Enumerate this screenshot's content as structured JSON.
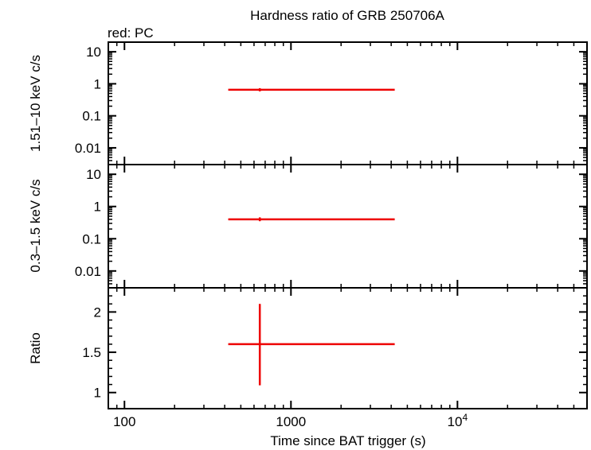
{
  "title": "Hardness ratio of GRB 250706A",
  "legend_text": "red: PC",
  "xlabel": "Time since BAT trigger (s)",
  "colors": {
    "series": "#ee0000"
  },
  "chart_data": [
    {
      "type": "scatter",
      "panel": "top",
      "ylabel": "1.51–10 keV c/s",
      "xscale": "log",
      "yscale": "log",
      "xlim": [
        80,
        60000
      ],
      "ylim": [
        0.003,
        20
      ],
      "yticks": [
        0.01,
        0.1,
        1,
        10
      ],
      "ytick_labels": [
        "0.01",
        "0.1",
        "1",
        "10"
      ],
      "series": [
        {
          "name": "PC",
          "color": "#ee0000",
          "points": [
            {
              "x": 650,
              "x_low": 420,
              "x_high": 4200,
              "y": 0.65,
              "y_low": 0.58,
              "y_high": 0.73
            }
          ]
        }
      ]
    },
    {
      "type": "scatter",
      "panel": "middle",
      "ylabel": "0.3–1.5 keV c/s",
      "xscale": "log",
      "yscale": "log",
      "xlim": [
        80,
        60000
      ],
      "ylim": [
        0.003,
        20
      ],
      "yticks": [
        0.01,
        0.1,
        1,
        10
      ],
      "ytick_labels": [
        "0.01",
        "0.1",
        "1",
        "10"
      ],
      "series": [
        {
          "name": "PC",
          "color": "#ee0000",
          "points": [
            {
              "x": 650,
              "x_low": 420,
              "x_high": 4200,
              "y": 0.4,
              "y_low": 0.35,
              "y_high": 0.46
            }
          ]
        }
      ]
    },
    {
      "type": "scatter",
      "panel": "bottom",
      "ylabel": "Ratio",
      "xscale": "log",
      "yscale": "linear",
      "xlim": [
        80,
        60000
      ],
      "ylim": [
        0.8,
        2.3
      ],
      "yticks": [
        1,
        1.5,
        2
      ],
      "ytick_labels": [
        "1",
        "1.5",
        "2"
      ],
      "xticks": [
        100,
        1000,
        10000
      ],
      "xtick_labels": [
        "100",
        "1000",
        "10⁴"
      ],
      "series": [
        {
          "name": "PC",
          "color": "#ee0000",
          "points": [
            {
              "x": 650,
              "x_low": 420,
              "x_high": 4200,
              "y": 1.6,
              "y_low": 1.09,
              "y_high": 2.1
            }
          ]
        }
      ]
    }
  ]
}
